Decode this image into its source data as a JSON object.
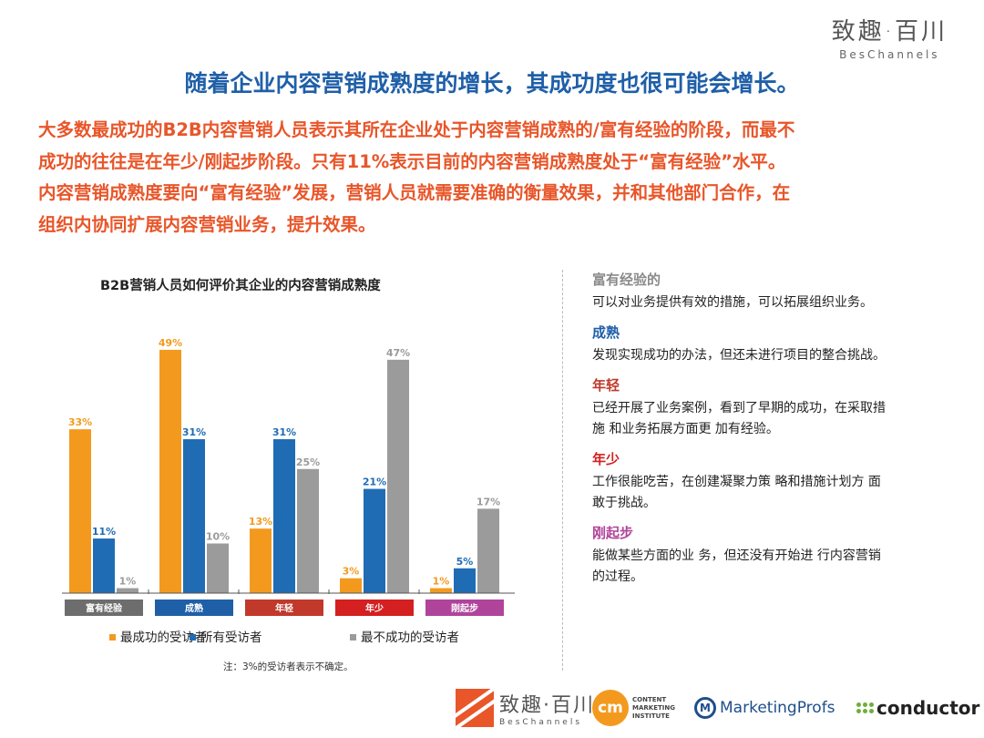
{
  "logo": {
    "cn": "致趣·百川",
    "en": "BesChannels"
  },
  "headline": "随着企业内容营销成熟度的增长，其成功度也很可能会增长。",
  "intro_lines": [
    "大多数最成功的B2B内容营销人员表示其所在企业处于内容营销成熟的/富有经验的阶段，而最不",
    "成功的往往是在年少/刚起步阶段。只有11%表示目前的内容营销成熟度处于“富有经验”水平。",
    "内容营销成熟度要向“富有经验”发展，营销人员就需要准确的衡量效果，并和其他部门合作，在",
    "组织内协同扩展内容营销业务，提升效果。"
  ],
  "note": "注：3%的受访者表示不确定。",
  "stages": [
    {
      "title": "富有经验的",
      "color": "#8a8a8a",
      "lines": [
        "可以对业务提供有效的措施，可以拓展组织业务。"
      ]
    },
    {
      "title": "成熟",
      "color": "#1f5fa8",
      "lines": [
        "发现实现成功的办法，但还未进行项目的整合挑战。"
      ]
    },
    {
      "title": "年轻",
      "color": "#c0392b",
      "lines": [
        "已经开展了业务案例，看到了早期的成功，在采取措",
        "施 和业务拓展方面更 加有经验。"
      ]
    },
    {
      "title": "年少",
      "color": "#d42020",
      "lines": [
        "工作很能吃苦，在创建凝聚力策 略和措施计划方 面",
        "敢于挑战。"
      ]
    },
    {
      "title": "刚起步",
      "color": "#b0449a",
      "lines": [
        "能做某些方面的业 务，但还没有开始进 行内容营销",
        "的过程。"
      ]
    }
  ],
  "footer": {
    "bes_cn": "致趣·百川",
    "bes_en": "BesChannels",
    "cmi_mark": "cm",
    "cmi_lines": [
      "CONTENT",
      "MARKETING",
      "INSTITUTE"
    ],
    "mp_mark": "M",
    "mp_text": "MarketingProfs",
    "cd_text": "conductor"
  },
  "chart_data": {
    "type": "bar",
    "title": "B2B营销人员如何评价其企业的内容营销成熟度",
    "categories": [
      "富有经验",
      "成熟",
      "年轻",
      "年少",
      "刚起步"
    ],
    "category_colors": [
      "#6d6d6d",
      "#1f5fa8",
      "#c0392b",
      "#d42020",
      "#b0449a"
    ],
    "series": [
      {
        "name": "最成功的受访者",
        "color": "#f39a1e",
        "values": [
          33,
          49,
          13,
          3,
          1
        ]
      },
      {
        "name": "所有受访者",
        "color": "#1f6cb5",
        "values": [
          11,
          31,
          31,
          21,
          5
        ]
      },
      {
        "name": "最不成功的受访者",
        "color": "#9b9b9b",
        "values": [
          1,
          10,
          25,
          47,
          17
        ]
      }
    ],
    "unit": "%",
    "ylim": [
      0,
      50
    ],
    "legend": "bottom"
  }
}
